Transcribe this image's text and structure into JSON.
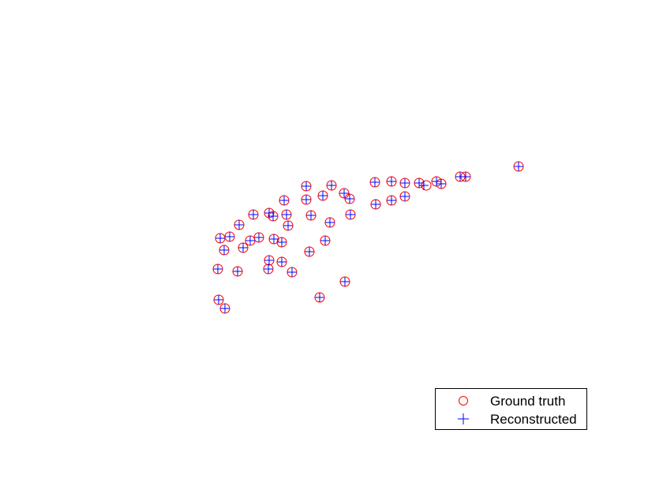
{
  "chart_data": {
    "type": "scatter",
    "title": "",
    "xlabel": "",
    "ylabel": "",
    "axes_visible": false,
    "grid": false,
    "legend_placement": "bottom-right",
    "series": [
      {
        "name": "Ground truth",
        "marker": "circle",
        "color": "#ff0000",
        "points": [
          [
            657,
            211
          ],
          [
            583,
            224
          ],
          [
            590,
            224
          ],
          [
            553,
            230
          ],
          [
            559,
            233
          ],
          [
            540,
            235
          ],
          [
            531,
            232
          ],
          [
            513,
            232
          ],
          [
            496,
            230
          ],
          [
            475,
            231
          ],
          [
            513,
            249
          ],
          [
            496,
            254
          ],
          [
            476,
            259
          ],
          [
            443,
            252
          ],
          [
            436,
            245
          ],
          [
            420,
            235
          ],
          [
            409,
            248
          ],
          [
            388,
            236
          ],
          [
            388,
            253
          ],
          [
            360,
            254
          ],
          [
            444,
            272
          ],
          [
            418,
            282
          ],
          [
            394,
            273
          ],
          [
            363,
            272
          ],
          [
            346,
            274
          ],
          [
            341,
            270
          ],
          [
            321,
            272
          ],
          [
            365,
            286
          ],
          [
            303,
            285
          ],
          [
            291,
            300
          ],
          [
            279,
            302
          ],
          [
            328,
            301
          ],
          [
            317,
            305
          ],
          [
            347,
            303
          ],
          [
            357,
            307
          ],
          [
            308,
            314
          ],
          [
            284,
            317
          ],
          [
            412,
            305
          ],
          [
            392,
            319
          ],
          [
            341,
            330
          ],
          [
            357,
            332
          ],
          [
            340,
            341
          ],
          [
            370,
            345
          ],
          [
            301,
            344
          ],
          [
            276,
            341
          ],
          [
            437,
            357
          ],
          [
            405,
            377
          ],
          [
            277,
            380
          ],
          [
            285,
            391
          ]
        ]
      },
      {
        "name": "Reconstructed",
        "marker": "plus",
        "color": "#0000ff",
        "points": [
          [
            657,
            211
          ],
          [
            583,
            224
          ],
          [
            590,
            224
          ],
          [
            553,
            230
          ],
          [
            559,
            233
          ],
          [
            537,
            235
          ],
          [
            531,
            232
          ],
          [
            513,
            232
          ],
          [
            496,
            230
          ],
          [
            475,
            231
          ],
          [
            513,
            249
          ],
          [
            496,
            254
          ],
          [
            476,
            259
          ],
          [
            443,
            252
          ],
          [
            436,
            245
          ],
          [
            420,
            235
          ],
          [
            409,
            248
          ],
          [
            388,
            236
          ],
          [
            388,
            253
          ],
          [
            360,
            254
          ],
          [
            444,
            272
          ],
          [
            418,
            282
          ],
          [
            394,
            273
          ],
          [
            363,
            272
          ],
          [
            346,
            274
          ],
          [
            341,
            270
          ],
          [
            321,
            272
          ],
          [
            365,
            286
          ],
          [
            303,
            285
          ],
          [
            291,
            300
          ],
          [
            279,
            302
          ],
          [
            328,
            301
          ],
          [
            317,
            305
          ],
          [
            347,
            303
          ],
          [
            357,
            307
          ],
          [
            308,
            314
          ],
          [
            284,
            317
          ],
          [
            412,
            305
          ],
          [
            392,
            319
          ],
          [
            341,
            330
          ],
          [
            357,
            332
          ],
          [
            340,
            341
          ],
          [
            370,
            345
          ],
          [
            301,
            344
          ],
          [
            276,
            341
          ],
          [
            437,
            357
          ],
          [
            405,
            377
          ],
          [
            277,
            380
          ],
          [
            285,
            391
          ]
        ]
      }
    ]
  }
}
